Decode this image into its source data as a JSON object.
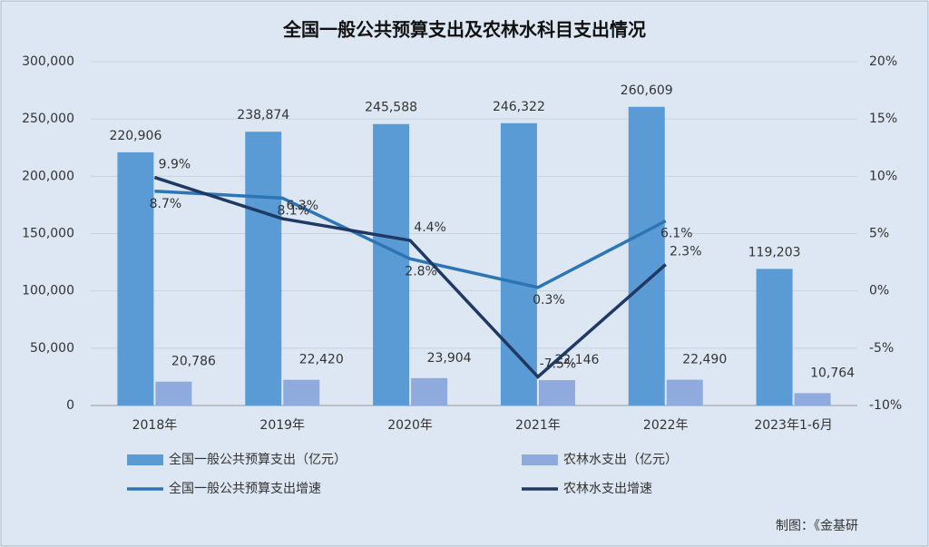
{
  "chart_data": {
    "type": "bar_line",
    "title": "全国一般公共预算支出及农林水科目支出情况",
    "categories": [
      "2018年",
      "2019年",
      "2020年",
      "2021年",
      "2022年",
      "2023年1-6月"
    ],
    "series": [
      {
        "name": "全国一般公共预算支出（亿元）",
        "type": "bar",
        "color": "#5b9bd5",
        "values": [
          220906,
          238874,
          245588,
          246322,
          260609,
          119203
        ],
        "value_labels": [
          "220,906",
          "238,874",
          "245,588",
          "246,322",
          "260,609",
          "119,203"
        ]
      },
      {
        "name": "农林水支出（亿元）",
        "type": "bar",
        "color": "#8faadc",
        "values": [
          20786,
          22420,
          23904,
          22146,
          22490,
          10764
        ],
        "value_labels": [
          "20,786",
          "22,420",
          "23,904",
          "22,146",
          "22,490",
          "10,764"
        ]
      },
      {
        "name": "全国一般公共预算支出增速",
        "type": "line",
        "axis": "y2",
        "color": "#2e75b6",
        "values": [
          8.7,
          8.1,
          2.8,
          0.3,
          6.1,
          null
        ],
        "value_labels": [
          "8.7%",
          "8.1%",
          "2.8%",
          "0.3%",
          "6.1%",
          null
        ]
      },
      {
        "name": "农林水支出增速",
        "type": "line",
        "axis": "y2",
        "color": "#1f3864",
        "values": [
          9.9,
          6.3,
          4.4,
          -7.5,
          2.3,
          null
        ],
        "value_labels": [
          "9.9%",
          "6.3%",
          "4.4%",
          "-7.5%",
          "2.3%",
          null
        ]
      }
    ],
    "ylim": [
      0,
      300000
    ],
    "yticks": [
      0,
      {
        "value": 50000,
        "label": "50,000"
      },
      {
        "value": 100000,
        "label": "100,000"
      },
      {
        "value": 150000,
        "label": "150,000"
      },
      {
        "value": 200000,
        "label": "200,000"
      },
      {
        "value": 250000,
        "label": "250,000"
      },
      {
        "value": 300000,
        "label": "300,000"
      }
    ],
    "y2lim": [
      -10,
      20
    ],
    "y2ticks": [
      {
        "value": -10,
        "label": "-10%"
      },
      {
        "value": -5,
        "label": "-5%"
      },
      {
        "value": 0,
        "label": "0%"
      },
      {
        "value": 5,
        "label": "5%"
      },
      {
        "value": 10,
        "label": "10%"
      },
      {
        "value": 15,
        "label": "15%"
      },
      {
        "value": 20,
        "label": "20%"
      }
    ],
    "grid": true,
    "source": "制图：《金基研"
  }
}
